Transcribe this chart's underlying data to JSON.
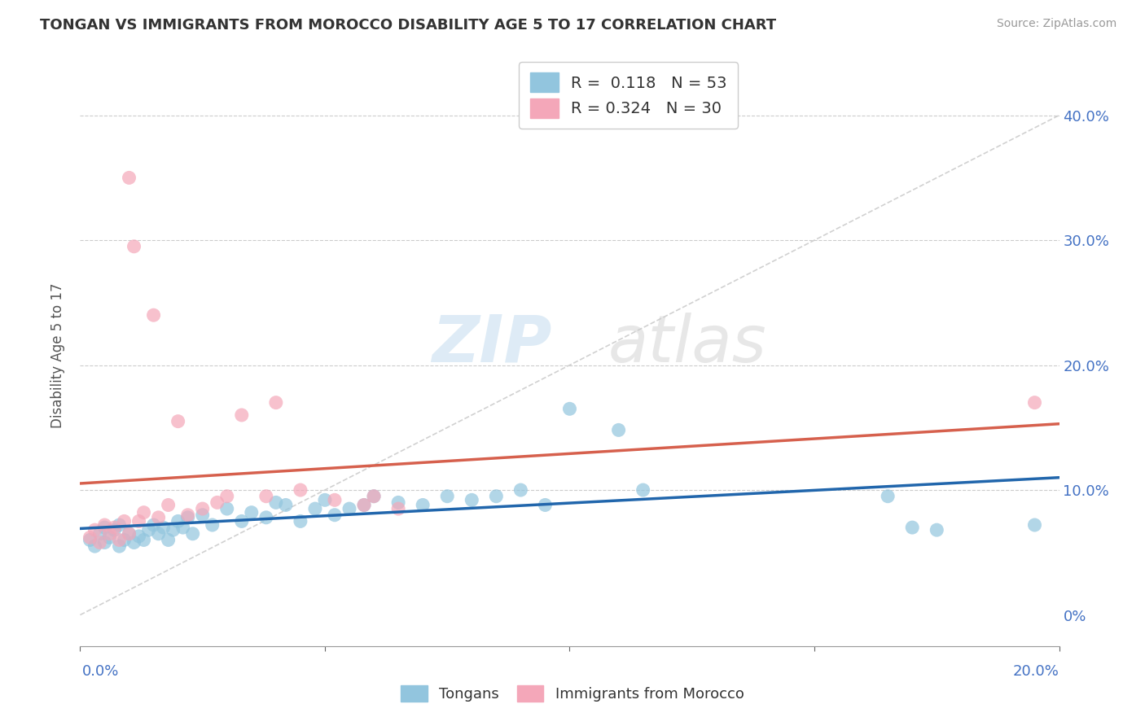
{
  "title": "TONGAN VS IMMIGRANTS FROM MOROCCO DISABILITY AGE 5 TO 17 CORRELATION CHART",
  "source": "Source: ZipAtlas.com",
  "ylabel": "Disability Age 5 to 17",
  "legend_blue_R": "0.118",
  "legend_blue_N": "53",
  "legend_pink_R": "0.324",
  "legend_pink_N": "30",
  "blue_color": "#92c5de",
  "pink_color": "#f4a7b9",
  "blue_line_color": "#2166ac",
  "pink_line_color": "#d6604d",
  "xlim": [
    0.0,
    0.2
  ],
  "ylim": [
    -0.025,
    0.44
  ],
  "yticks": [
    0.0,
    0.1,
    0.2,
    0.3,
    0.4
  ],
  "ytick_labels": [
    "0%",
    "10.0%",
    "20.0%",
    "30.0%",
    "40.0%"
  ],
  "blue_scatter_x": [
    0.002,
    0.003,
    0.004,
    0.005,
    0.005,
    0.006,
    0.007,
    0.008,
    0.008,
    0.009,
    0.01,
    0.011,
    0.012,
    0.013,
    0.014,
    0.015,
    0.016,
    0.017,
    0.018,
    0.019,
    0.02,
    0.021,
    0.022,
    0.023,
    0.025,
    0.027,
    0.03,
    0.033,
    0.035,
    0.038,
    0.04,
    0.042,
    0.045,
    0.048,
    0.05,
    0.052,
    0.055,
    0.058,
    0.06,
    0.065,
    0.07,
    0.075,
    0.08,
    0.085,
    0.09,
    0.095,
    0.1,
    0.11,
    0.115,
    0.165,
    0.17,
    0.175,
    0.195
  ],
  "blue_scatter_y": [
    0.06,
    0.055,
    0.065,
    0.07,
    0.058,
    0.062,
    0.068,
    0.055,
    0.072,
    0.06,
    0.065,
    0.058,
    0.063,
    0.06,
    0.068,
    0.072,
    0.065,
    0.07,
    0.06,
    0.068,
    0.075,
    0.07,
    0.078,
    0.065,
    0.08,
    0.072,
    0.085,
    0.075,
    0.082,
    0.078,
    0.09,
    0.088,
    0.075,
    0.085,
    0.092,
    0.08,
    0.085,
    0.088,
    0.095,
    0.09,
    0.088,
    0.095,
    0.092,
    0.095,
    0.1,
    0.088,
    0.165,
    0.148,
    0.1,
    0.095,
    0.07,
    0.068,
    0.072
  ],
  "pink_scatter_x": [
    0.002,
    0.003,
    0.004,
    0.005,
    0.006,
    0.007,
    0.008,
    0.009,
    0.01,
    0.01,
    0.011,
    0.012,
    0.013,
    0.015,
    0.016,
    0.018,
    0.02,
    0.022,
    0.025,
    0.028,
    0.03,
    0.033,
    0.038,
    0.04,
    0.045,
    0.052,
    0.058,
    0.06,
    0.065,
    0.195
  ],
  "pink_scatter_y": [
    0.062,
    0.068,
    0.058,
    0.072,
    0.065,
    0.07,
    0.06,
    0.075,
    0.35,
    0.065,
    0.295,
    0.075,
    0.082,
    0.24,
    0.078,
    0.088,
    0.155,
    0.08,
    0.085,
    0.09,
    0.095,
    0.16,
    0.095,
    0.17,
    0.1,
    0.092,
    0.088,
    0.095,
    0.085,
    0.17
  ]
}
